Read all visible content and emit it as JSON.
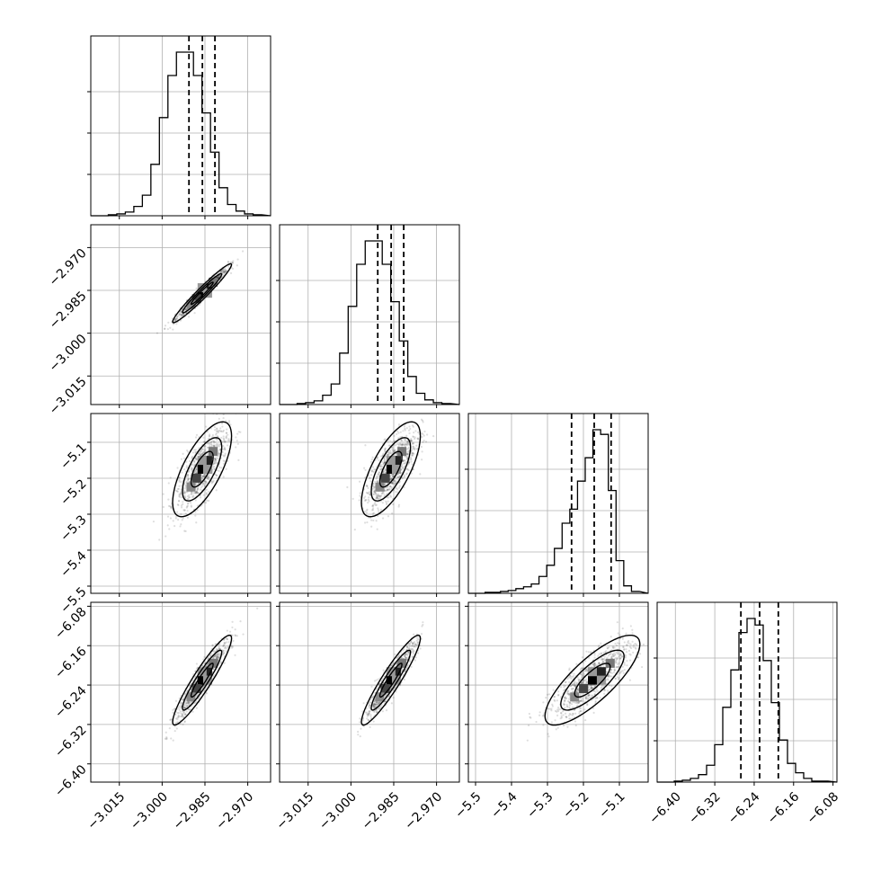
{
  "chart_data": {
    "type": "corner",
    "parameters": [
      {
        "range": [
          -3.025,
          -2.962
        ],
        "ticks": [
          -3.015,
          -3.0,
          -2.985,
          -2.97
        ],
        "tick_labels": [
          "−3.015",
          "−3.000",
          "−2.985",
          "−2.970"
        ],
        "mean": -2.986,
        "sigma": 0.0043,
        "quantiles": [
          -2.9906,
          -2.9859,
          -2.9815
        ]
      },
      {
        "range": [
          -3.025,
          -2.962
        ],
        "ticks": [
          -3.015,
          -3.0,
          -2.985,
          -2.97
        ],
        "tick_labels": [
          "−3.015",
          "−3.000",
          "−2.985",
          "−2.970"
        ],
        "mean": -2.986,
        "sigma": 0.0043,
        "quantiles": [
          -2.9906,
          -2.9859,
          -2.9815
        ]
      },
      {
        "range": [
          -5.52,
          -5.02
        ],
        "ticks": [
          -5.5,
          -5.4,
          -5.3,
          -5.2,
          -5.1
        ],
        "tick_labels": [
          "−5.5",
          "−5.4",
          "−5.3",
          "−5.2",
          "−5.1"
        ],
        "mean": -5.175,
        "sigma": 0.055,
        "quantiles": [
          -5.233,
          -5.17,
          -5.123
        ]
      },
      {
        "range": [
          -6.437,
          -6.072
        ],
        "ticks": [
          -6.4,
          -6.32,
          -6.24,
          -6.16,
          -6.08
        ],
        "tick_labels": [
          "−6.40",
          "−6.32",
          "−6.24",
          "−6.16",
          "−6.08"
        ],
        "mean": -6.23,
        "sigma": 0.038,
        "quantiles": [
          -6.267,
          -6.229,
          -6.191
        ]
      }
    ],
    "correlations": {
      "1-0": 0.97,
      "2-0": 0.7,
      "2-1": 0.7,
      "3-0": 0.93,
      "3-1": 0.93,
      "3-2": 0.8
    },
    "histograms": [
      [
        0,
        1,
        2,
        4,
        10,
        22,
        55,
        105,
        150,
        175,
        175,
        150,
        110,
        68,
        30,
        12,
        5,
        2,
        1
      ],
      [
        0,
        1,
        2,
        4,
        10,
        22,
        55,
        105,
        150,
        175,
        175,
        150,
        110,
        68,
        30,
        12,
        5,
        2,
        1
      ],
      [
        0,
        1,
        1,
        2,
        3,
        5,
        7,
        10,
        18,
        30,
        48,
        75,
        90,
        120,
        145,
        175,
        170,
        110,
        35,
        8,
        2
      ],
      [
        0,
        1,
        2,
        4,
        8,
        18,
        40,
        80,
        120,
        160,
        175,
        168,
        130,
        85,
        45,
        20,
        10,
        4,
        1,
        1
      ]
    ],
    "grid": true,
    "title": "",
    "labels": []
  }
}
